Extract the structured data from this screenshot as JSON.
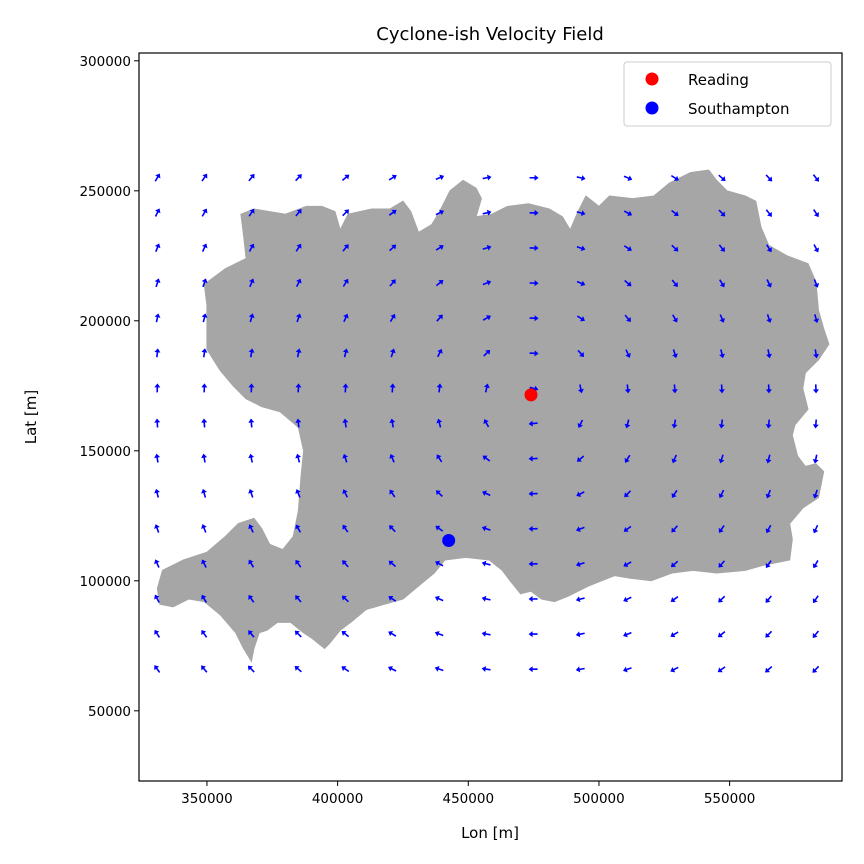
{
  "chart_data": {
    "type": "scatter",
    "title": "Cyclone-ish Velocity Field",
    "xlabel": "Lon [m]",
    "ylabel": "Lat [m]",
    "xlim": [
      324000,
      593000
    ],
    "ylim": [
      23000,
      303000
    ],
    "xticks": [
      350000,
      400000,
      450000,
      500000,
      550000
    ],
    "yticks": [
      50000,
      100000,
      150000,
      200000,
      250000,
      300000
    ],
    "xtick_labels": [
      "350000",
      "400000",
      "450000",
      "500000",
      "550000"
    ],
    "ytick_labels": [
      "50000",
      "100000",
      "150000",
      "200000",
      "250000",
      "300000"
    ],
    "grid": false,
    "legend_position": "top-right",
    "series": [
      {
        "name": "Reading",
        "color": "#ff0000",
        "points": [
          {
            "x": 474000,
            "y": 171500
          }
        ]
      },
      {
        "name": "Southampton",
        "color": "#0000ff",
        "points": [
          {
            "x": 442500,
            "y": 115500
          }
        ]
      }
    ],
    "land_color": "#a6a6a6",
    "land_outline_lonlat": [
      [
        331000,
        97000
      ],
      [
        333000,
        104000
      ],
      [
        341000,
        108000
      ],
      [
        350000,
        111000
      ],
      [
        357000,
        117000
      ],
      [
        362000,
        122000
      ],
      [
        368000,
        124000
      ],
      [
        371000,
        120000
      ],
      [
        374000,
        114000
      ],
      [
        379000,
        112000
      ],
      [
        383000,
        117000
      ],
      [
        385000,
        127000
      ],
      [
        386000,
        140000
      ],
      [
        387000,
        150000
      ],
      [
        385000,
        159000
      ],
      [
        378000,
        165000
      ],
      [
        371000,
        167000
      ],
      [
        365000,
        170000
      ],
      [
        360000,
        175000
      ],
      [
        355000,
        181000
      ],
      [
        350000,
        189000
      ],
      [
        350000,
        197000
      ],
      [
        350000,
        206000
      ],
      [
        349000,
        214000
      ],
      [
        357000,
        220000
      ],
      [
        365000,
        224000
      ],
      [
        364000,
        233000
      ],
      [
        363000,
        241000
      ],
      [
        368000,
        243000
      ],
      [
        380000,
        241000
      ],
      [
        388000,
        244000
      ],
      [
        394000,
        244000
      ],
      [
        399000,
        242000
      ],
      [
        401000,
        235000
      ],
      [
        404000,
        241000
      ],
      [
        413000,
        243000
      ],
      [
        420000,
        243000
      ],
      [
        425000,
        246000
      ],
      [
        428000,
        242000
      ],
      [
        431000,
        234000
      ],
      [
        436000,
        237000
      ],
      [
        439000,
        242000
      ],
      [
        443000,
        250000
      ],
      [
        448000,
        254000
      ],
      [
        453000,
        251000
      ],
      [
        455000,
        247000
      ],
      [
        453000,
        240000
      ],
      [
        459000,
        241000
      ],
      [
        465000,
        244000
      ],
      [
        473000,
        245000
      ],
      [
        481000,
        243000
      ],
      [
        486000,
        240000
      ],
      [
        489000,
        235000
      ],
      [
        492000,
        242000
      ],
      [
        495000,
        248000
      ],
      [
        500000,
        244000
      ],
      [
        504000,
        248000
      ],
      [
        513000,
        247000
      ],
      [
        521000,
        248000
      ],
      [
        527000,
        253000
      ],
      [
        535000,
        257000
      ],
      [
        542000,
        258000
      ],
      [
        545000,
        254000
      ],
      [
        549000,
        250000
      ],
      [
        556000,
        248000
      ],
      [
        560000,
        246000
      ],
      [
        562000,
        236000
      ],
      [
        565000,
        229000
      ],
      [
        572000,
        225000
      ],
      [
        580000,
        222000
      ],
      [
        583000,
        215000
      ],
      [
        584000,
        204000
      ],
      [
        586000,
        197000
      ],
      [
        588000,
        191000
      ],
      [
        584000,
        185000
      ],
      [
        579000,
        180000
      ],
      [
        578000,
        174000
      ],
      [
        580000,
        166000
      ],
      [
        575000,
        160000
      ],
      [
        574000,
        156000
      ],
      [
        576000,
        148000
      ],
      [
        579000,
        144000
      ],
      [
        583000,
        145000
      ],
      [
        586000,
        142000
      ],
      [
        584000,
        132000
      ],
      [
        578000,
        128000
      ],
      [
        573000,
        122000
      ],
      [
        574000,
        116000
      ],
      [
        573000,
        108000
      ],
      [
        563000,
        106000
      ],
      [
        556000,
        104000
      ],
      [
        545000,
        103000
      ],
      [
        536000,
        104000
      ],
      [
        528000,
        103000
      ],
      [
        520000,
        100000
      ],
      [
        512000,
        101000
      ],
      [
        506000,
        102000
      ],
      [
        501000,
        100000
      ],
      [
        496000,
        98000
      ],
      [
        488000,
        94000
      ],
      [
        483000,
        92000
      ],
      [
        478000,
        93000
      ],
      [
        474000,
        96000
      ],
      [
        470000,
        95000
      ],
      [
        466000,
        100000
      ],
      [
        463000,
        104000
      ],
      [
        458000,
        108000
      ],
      [
        449000,
        109000
      ],
      [
        441000,
        108000
      ],
      [
        437000,
        103000
      ],
      [
        431000,
        98000
      ],
      [
        425000,
        93000
      ],
      [
        418000,
        91000
      ],
      [
        411000,
        89000
      ],
      [
        405000,
        84000
      ],
      [
        401000,
        81000
      ],
      [
        397000,
        76000
      ],
      [
        395000,
        74000
      ],
      [
        390000,
        78000
      ],
      [
        387000,
        80000
      ],
      [
        382000,
        84000
      ],
      [
        377000,
        84000
      ],
      [
        373000,
        81000
      ],
      [
        370000,
        80000
      ],
      [
        368000,
        74000
      ],
      [
        367000,
        69000
      ],
      [
        364000,
        74000
      ],
      [
        361000,
        80000
      ],
      [
        355000,
        87000
      ],
      [
        349000,
        92000
      ],
      [
        343000,
        93000
      ],
      [
        337000,
        90000
      ],
      [
        332000,
        91000
      ]
    ]
  }
}
